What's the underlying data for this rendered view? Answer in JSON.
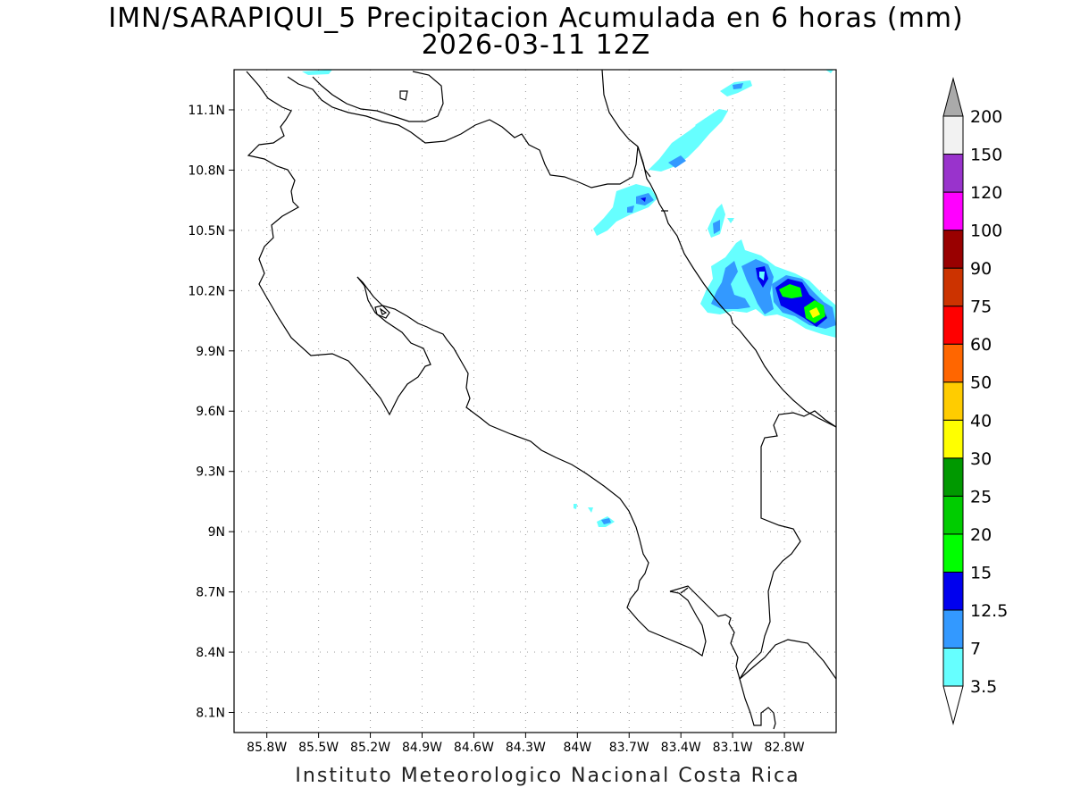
{
  "title": {
    "line1": "IMN/SARAPIQUI_5 Precipitacion Acumulada en 6 horas (mm)",
    "line2": "2026-03-11 12Z"
  },
  "credit": "Instituto Meteorologico Nacional Costa Rica",
  "map": {
    "lon_ticks": [
      "85.8W",
      "85.5W",
      "85.2W",
      "84.9W",
      "84.6W",
      "84.3W",
      "84W",
      "83.7W",
      "83.4W",
      "83.1W",
      "82.8W"
    ],
    "lat_ticks": [
      "11.1N",
      "10.8N",
      "10.5N",
      "10.2N",
      "9.9N",
      "9.6N",
      "9.3N",
      "9N",
      "8.7N",
      "8.4N",
      "8.1N"
    ],
    "lon_values": [
      -85.8,
      -85.5,
      -85.2,
      -84.9,
      -84.6,
      -84.3,
      -84.0,
      -83.7,
      -83.4,
      -83.1,
      -82.8
    ],
    "lat_values": [
      11.1,
      10.8,
      10.5,
      10.2,
      9.9,
      9.6,
      9.3,
      9.0,
      8.7,
      8.4,
      8.1
    ],
    "lon_range": [
      -85.99,
      -82.5
    ],
    "lat_range": [
      8.0,
      11.3
    ],
    "gridlines": "dotted"
  },
  "colorbar": {
    "labels": [
      "3.5",
      "7",
      "12.5",
      "15",
      "20",
      "25",
      "30",
      "40",
      "50",
      "60",
      "75",
      "90",
      "100",
      "120",
      "150",
      "200"
    ],
    "colors": [
      "#66ffff",
      "#3399ff",
      "#0000ee",
      "#00ff00",
      "#00cc00",
      "#009900",
      "#ffff00",
      "#ffcc00",
      "#ff6600",
      "#ff0000",
      "#cc3300",
      "#990000",
      "#ff00ff",
      "#9933cc",
      "#f2f2f2"
    ],
    "over_color": "#aaaaaa",
    "under_color": "#ffffff"
  }
}
